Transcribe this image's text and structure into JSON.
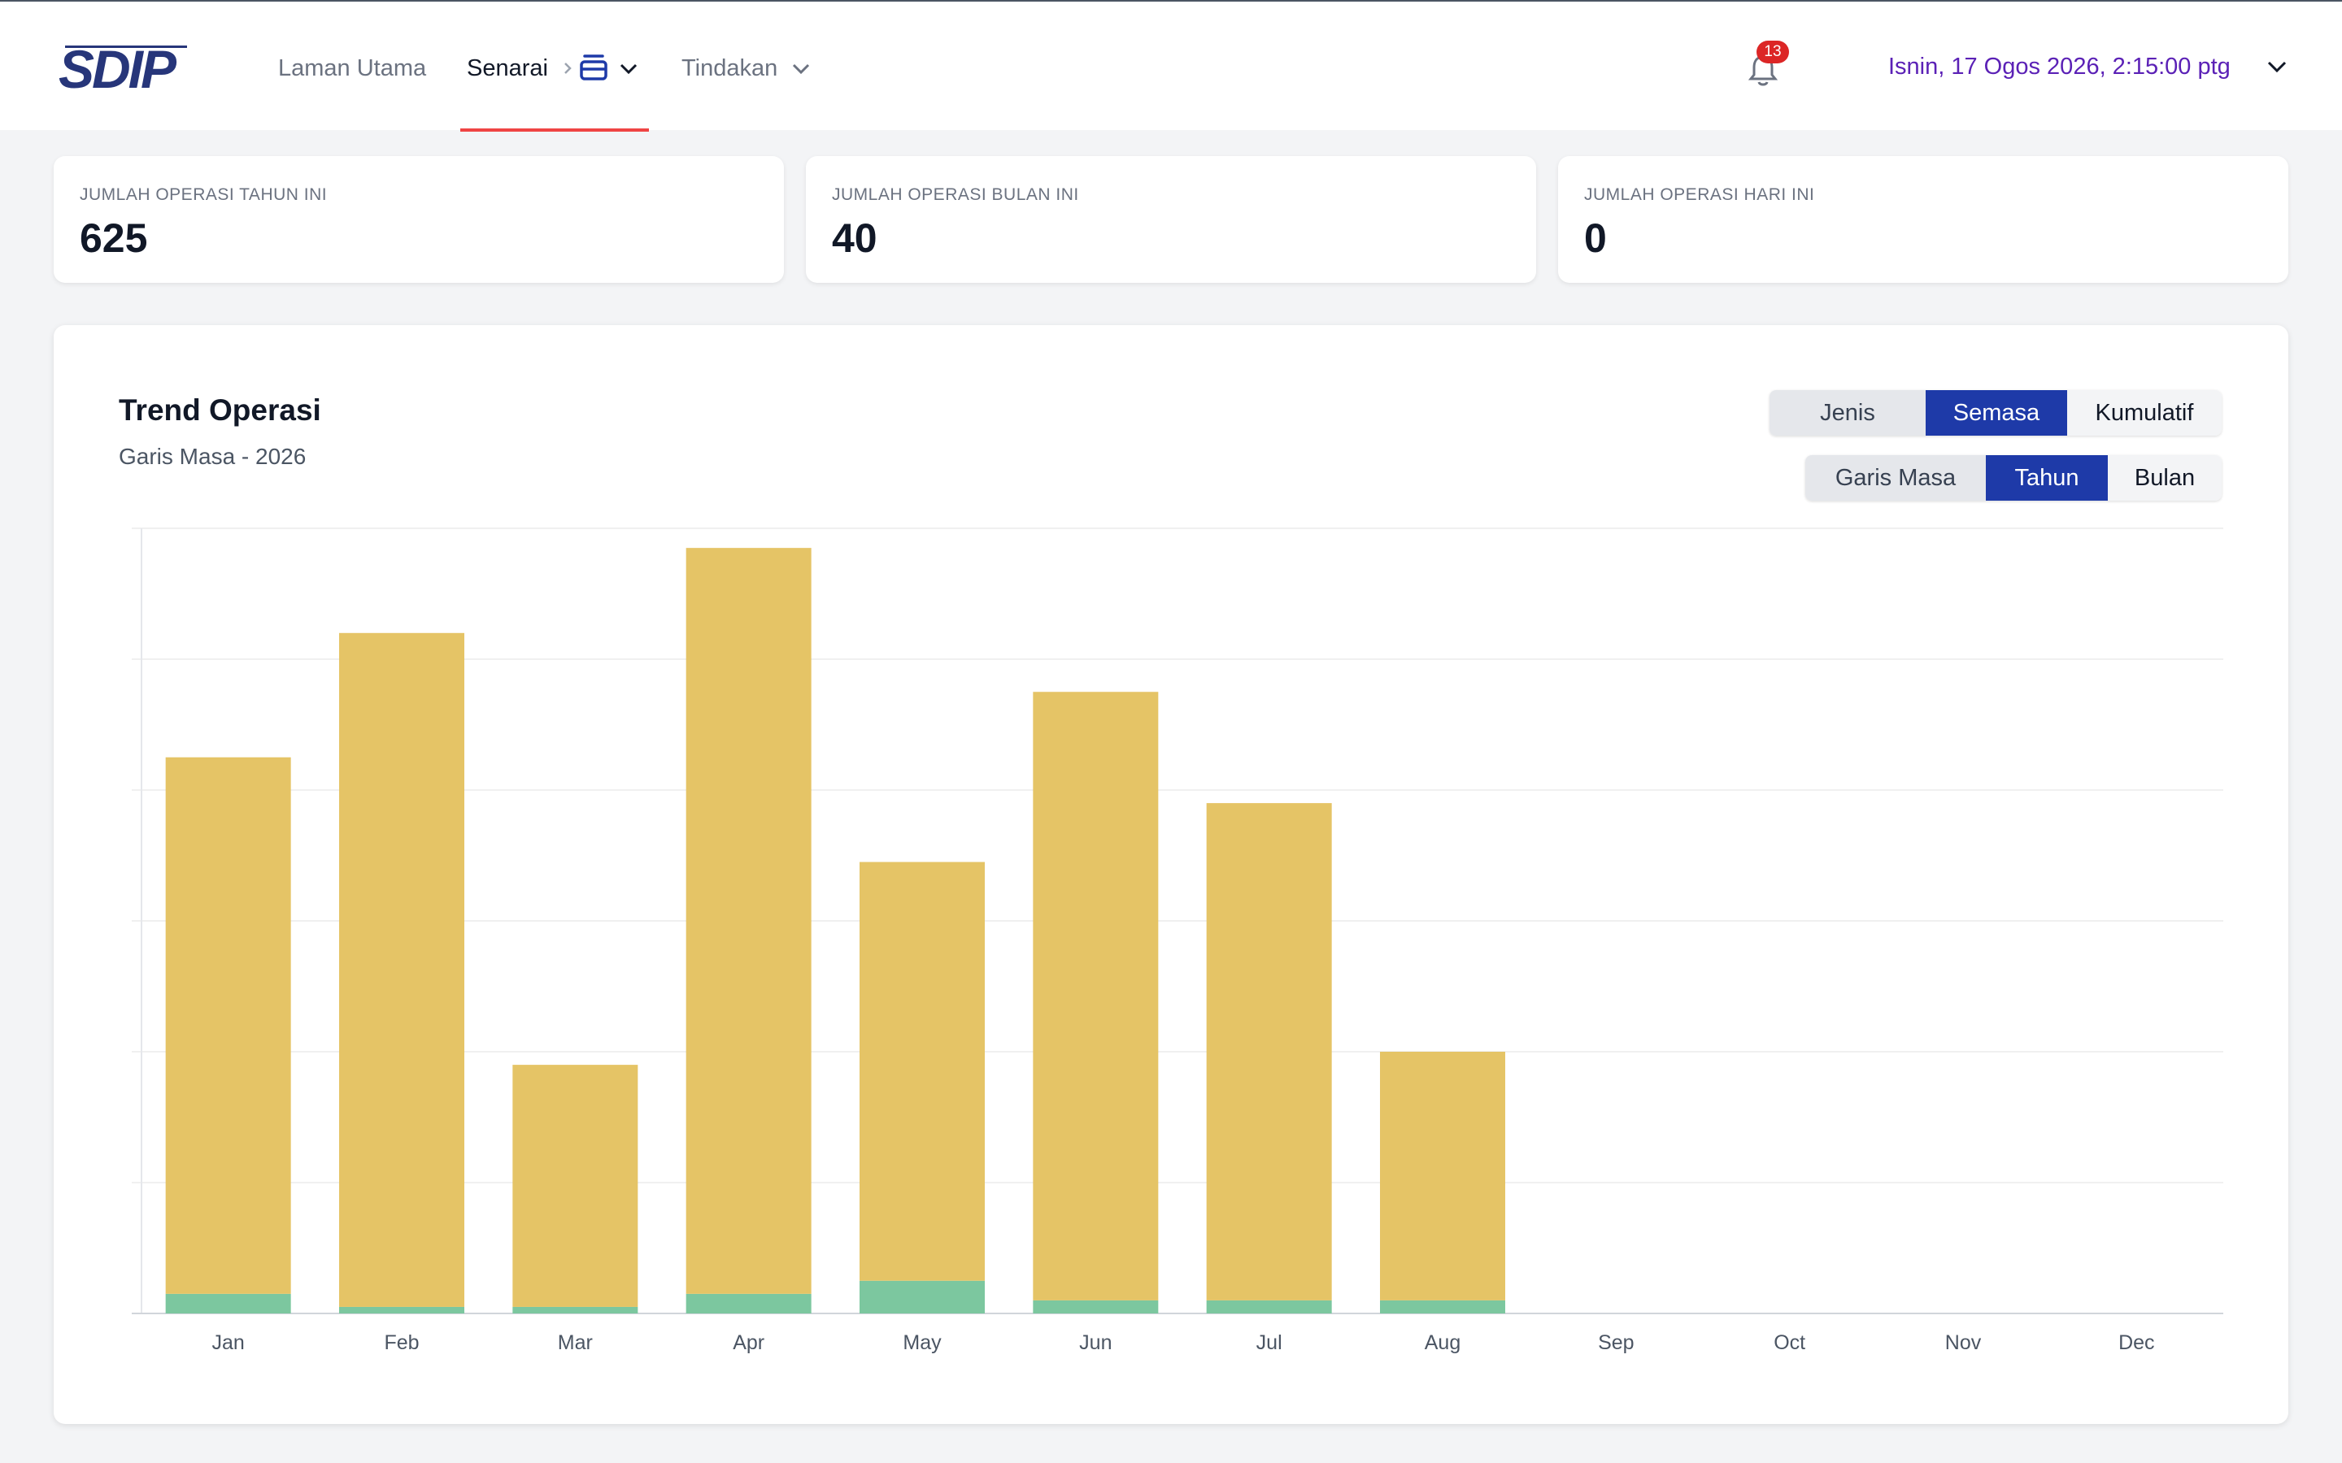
{
  "app": {
    "logo_text": "SDIP"
  },
  "nav": {
    "items": [
      {
        "label": "Laman Utama"
      },
      {
        "label": "Senarai"
      },
      {
        "label": "Tindakan"
      }
    ]
  },
  "notifications": {
    "count": "13"
  },
  "header": {
    "datetime": "Isnin, 17 Ogos 2026, 2:15:00 ptg"
  },
  "stats": [
    {
      "label": "JUMLAH OPERASI TAHUN INI",
      "value": "625"
    },
    {
      "label": "JUMLAH OPERASI BULAN INI",
      "value": "40"
    },
    {
      "label": "JUMLAH OPERASI HARI INI",
      "value": "0"
    }
  ],
  "chart_card": {
    "title": "Trend Operasi",
    "subtitle": "Garis Masa - 2026",
    "mode_buttons": [
      "Jenis",
      "Semasa",
      "Kumulatif"
    ],
    "mode_selected": "Semasa",
    "period_buttons": [
      "Garis Masa",
      "Tahun",
      "Bulan"
    ],
    "period_selected": "Tahun"
  },
  "colors": {
    "bar_main": "#e5c466",
    "bar_secondary": "#7cc79f",
    "accent": "#1e3aa8",
    "nav_underline": "#ef4444"
  },
  "chart_data": {
    "type": "bar",
    "stacked": true,
    "categories": [
      "Jan",
      "Feb",
      "Mar",
      "Apr",
      "May",
      "Jun",
      "Jul",
      "Aug",
      "Sep",
      "Oct",
      "Nov",
      "Dec"
    ],
    "series": [
      {
        "values": [
          3,
          1,
          1,
          3,
          5,
          2,
          2,
          2,
          0,
          0,
          0,
          0
        ]
      },
      {
        "values": [
          82,
          103,
          37,
          114,
          64,
          93,
          76,
          38,
          0,
          0,
          0,
          0
        ]
      }
    ],
    "ylim": [
      0,
      120
    ],
    "grid": true
  }
}
